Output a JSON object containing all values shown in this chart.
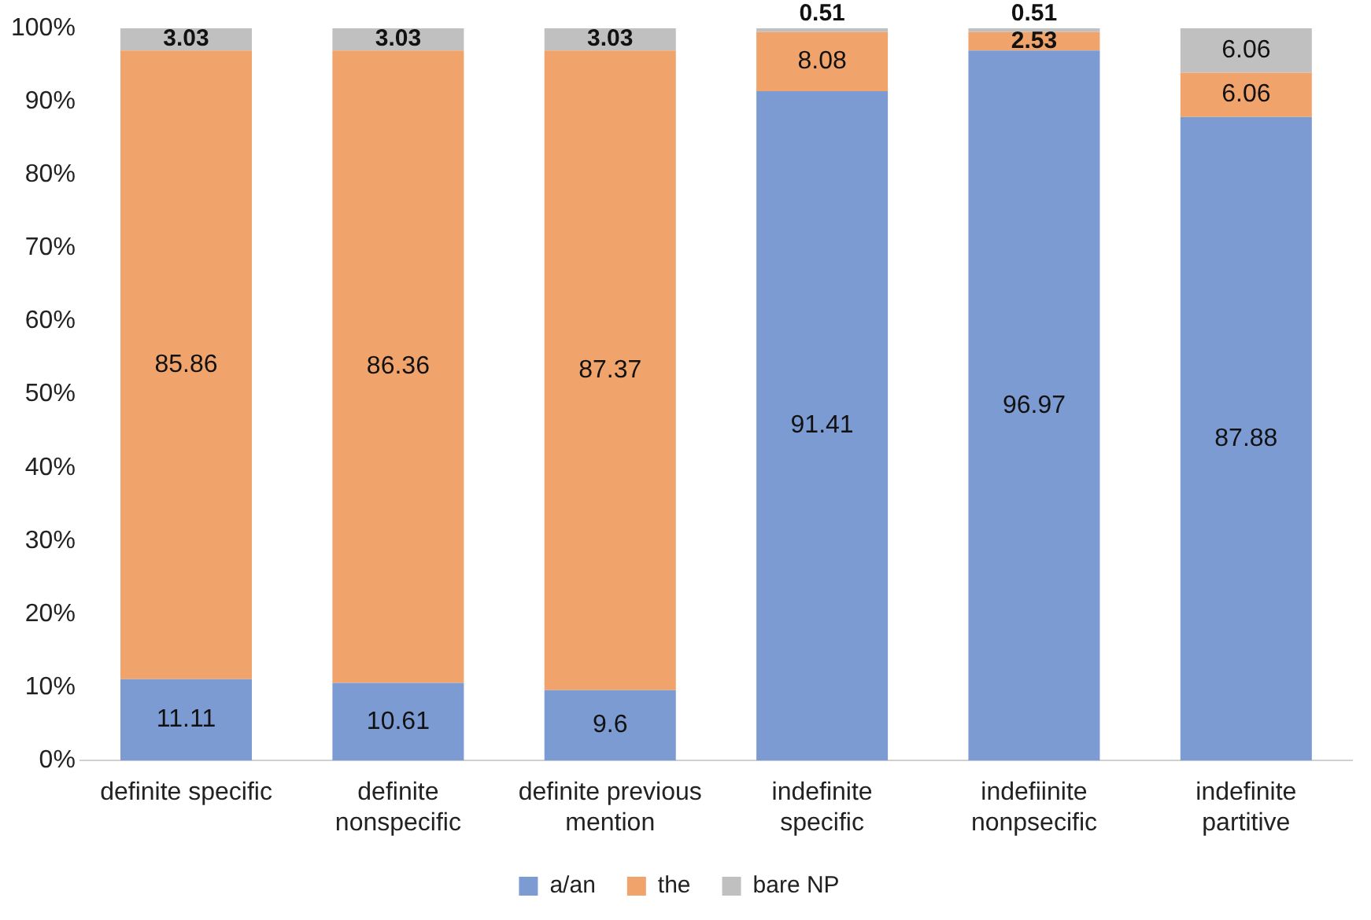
{
  "chart_data": {
    "type": "bar",
    "stacked": true,
    "categories": [
      "definite specific",
      "definite nonspecific",
      "definite previous mention",
      "indefinite specific",
      "indefiinite nonpsecific",
      "indefinite partitive"
    ],
    "series": [
      {
        "name": "a/an",
        "color": "#7b9bd2",
        "values": [
          11.11,
          10.61,
          9.6,
          91.41,
          96.97,
          87.88
        ]
      },
      {
        "name": "the",
        "color": "#f0a46c",
        "values": [
          85.86,
          86.36,
          87.37,
          8.08,
          2.53,
          6.06
        ]
      },
      {
        "name": "bare NP",
        "color": "#c0c0c0",
        "values": [
          3.03,
          3.03,
          3.03,
          0.51,
          0.51,
          6.06
        ]
      }
    ],
    "ylim": [
      0,
      100
    ],
    "yticks": [
      {
        "value": 0,
        "label": "0%"
      },
      {
        "value": 10,
        "label": "10%"
      },
      {
        "value": 20,
        "label": "20%"
      },
      {
        "value": 30,
        "label": "30%"
      },
      {
        "value": 40,
        "label": "40%"
      },
      {
        "value": 50,
        "label": "50%"
      },
      {
        "value": 60,
        "label": "60%"
      },
      {
        "value": 70,
        "label": "70%"
      },
      {
        "value": 80,
        "label": "80%"
      },
      {
        "value": 90,
        "label": "90%"
      },
      {
        "value": 100,
        "label": "100%"
      }
    ],
    "grid": false,
    "legend": "bottom",
    "data_labels": true
  }
}
